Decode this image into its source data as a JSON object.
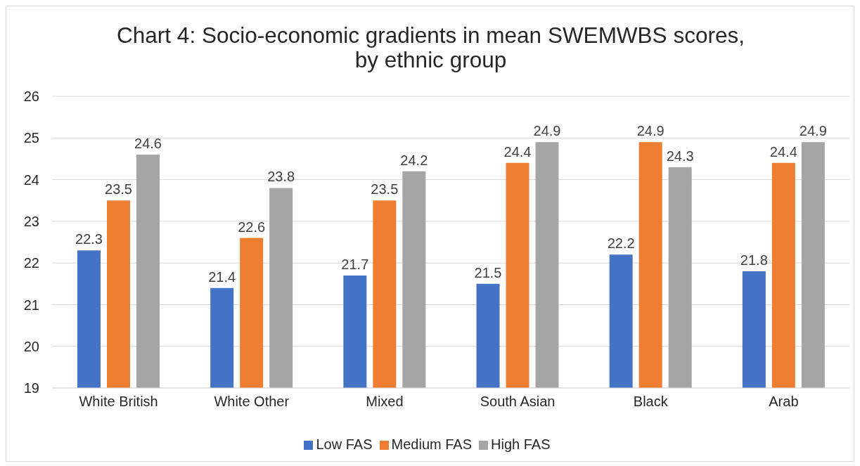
{
  "chart_data": {
    "type": "bar",
    "title": "Chart 4: Socio-economic gradients in mean SWEMWBS scores, by ethnic group",
    "categories": [
      "White British",
      "White Other",
      "Mixed",
      "South Asian",
      "Black",
      "Arab"
    ],
    "series": [
      {
        "name": "Low FAS",
        "color": "#4472c4",
        "values": [
          22.3,
          21.4,
          21.7,
          21.5,
          22.2,
          21.8
        ]
      },
      {
        "name": "Medium FAS",
        "color": "#ed7d31",
        "values": [
          23.5,
          22.6,
          23.5,
          24.4,
          24.9,
          24.4
        ]
      },
      {
        "name": "High FAS",
        "color": "#a5a5a5",
        "values": [
          24.6,
          23.8,
          24.2,
          24.9,
          24.3,
          24.9
        ]
      }
    ],
    "ylim": [
      19,
      26
    ],
    "yticks": [
      19,
      20,
      21,
      22,
      23,
      24,
      25,
      26
    ],
    "grid": "y",
    "legend": "bottom",
    "data_labels": true
  }
}
